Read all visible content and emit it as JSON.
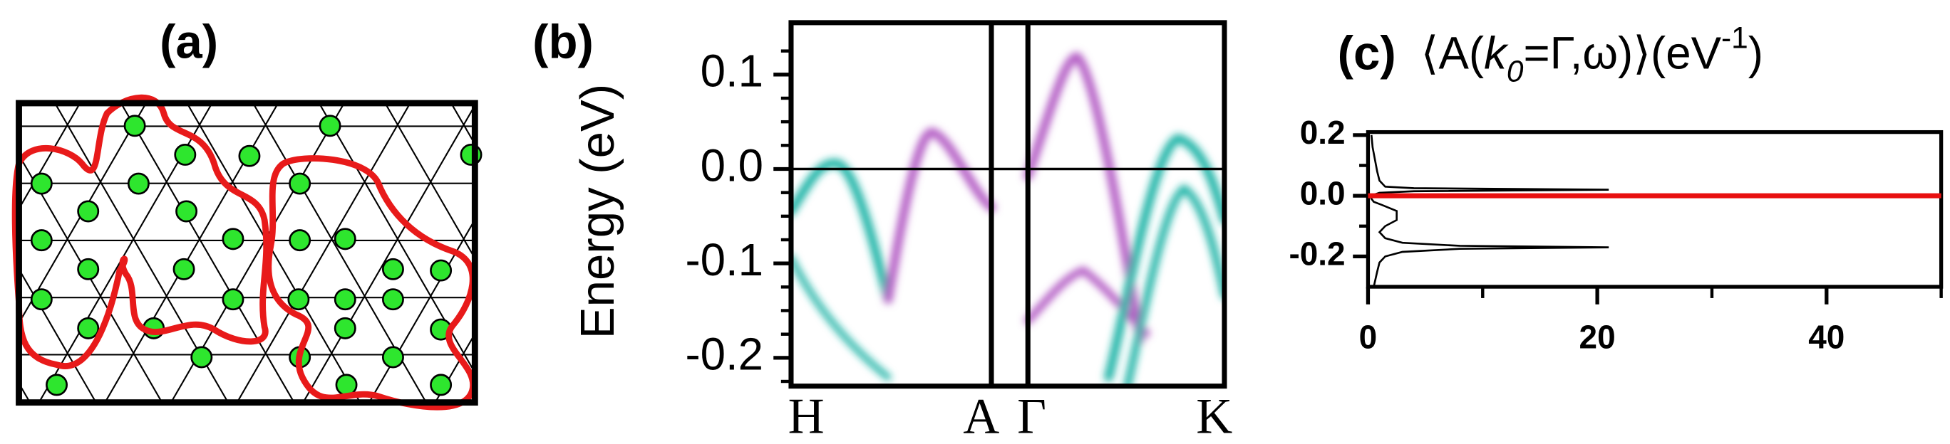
{
  "panel_a": {
    "label": "(a)"
  },
  "chart_data": [
    {
      "type": "band",
      "label": "(b)",
      "ylabel": "Energy (eV)",
      "kpoints": [
        "H",
        "A",
        "Γ",
        "K"
      ],
      "ylim": [
        -0.23,
        0.155
      ],
      "yticks": [
        0.1,
        {
          "value": 0,
          "label": "0.0"
        },
        -0.1,
        -0.2
      ],
      "yminorticks": [
        0.125,
        0.075,
        0.05,
        0.025,
        -0.025,
        -0.05,
        -0.075,
        -0.125,
        -0.15,
        -0.175,
        -0.225
      ],
      "colors": [
        "#1fb3a6",
        "#b35cc4"
      ]
    },
    {
      "type": "line",
      "label": "(c)",
      "title_parts": [
        "⟨A(",
        "k",
        "0",
        "=Γ,ω)⟩(eV",
        "-1",
        ")"
      ],
      "color": "#000000",
      "y": [
        -0.3,
        -0.25,
        -0.22,
        -0.2,
        -0.185,
        -0.175,
        -0.17,
        -0.165,
        -0.155,
        -0.14,
        -0.12,
        -0.1,
        -0.08,
        -0.05,
        -0.03,
        -0.02,
        -0.01,
        0,
        0.01,
        0.015,
        0.02,
        0.025,
        0.03,
        0.05,
        0.08,
        0.12,
        0.16,
        0.2
      ],
      "values": [
        0.5,
        0.8,
        1.0,
        1.5,
        3,
        8,
        21,
        8,
        3,
        1.5,
        1,
        1.5,
        2.5,
        2.5,
        1.2,
        0.5,
        0.3,
        0.2,
        1,
        4,
        21,
        4,
        1.5,
        1,
        0.8,
        0.6,
        0.4,
        0.3
      ],
      "hline": {
        "value": 0,
        "color": "#e81010"
      },
      "xlim": [
        0,
        50
      ],
      "xticks": [
        0,
        20,
        40
      ],
      "xminorticks": [
        10,
        30,
        50
      ],
      "ylim": [
        -0.3,
        0.21
      ],
      "yticks": [
        0.2,
        {
          "value": 0,
          "label": "0.0"
        },
        -0.2
      ],
      "yminorticks": [
        0.1,
        -0.1
      ]
    }
  ]
}
